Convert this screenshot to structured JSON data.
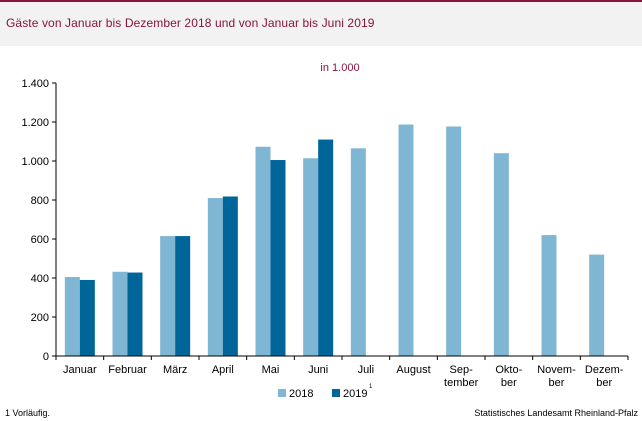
{
  "header": {
    "title": "Gäste von Januar bis Dezember 2018 und von Januar bis Juni 2019"
  },
  "colors": {
    "brand": "#8a1538",
    "series_2018": "#7fb6d3",
    "series_2019": "#006599",
    "header_bg": "#f2f2f2"
  },
  "footer": {
    "note": "1 Vorläufig.",
    "source": "Statistisches Landesamt Rheinland-Pfalz"
  },
  "chart_data": {
    "type": "bar",
    "unit_label": "in 1.000",
    "categories": [
      [
        "Januar"
      ],
      [
        "Februar"
      ],
      [
        "März"
      ],
      [
        "April"
      ],
      [
        "Mai"
      ],
      [
        "Juni"
      ],
      [
        "Juli"
      ],
      [
        "August"
      ],
      [
        "Sep-",
        "tember"
      ],
      [
        "Okto-",
        "ber"
      ],
      [
        "Novem-",
        "ber"
      ],
      [
        "Dezem-",
        "ber"
      ]
    ],
    "series": [
      {
        "name": "2018",
        "color": "#7fb6d3",
        "values": [
          405,
          432,
          615,
          810,
          1073,
          1014,
          1065,
          1187,
          1177,
          1040,
          620,
          520
        ]
      },
      {
        "name": "2019",
        "footnote_marker": "1",
        "color": "#006599",
        "values": [
          390,
          428,
          615,
          818,
          1005,
          1110,
          null,
          null,
          null,
          null,
          null,
          null
        ]
      }
    ],
    "ylim": [
      0,
      1400
    ],
    "yticks": [
      0,
      200,
      400,
      600,
      800,
      1000,
      1200,
      1400
    ],
    "ytick_labels": [
      "0",
      "200",
      "400",
      "600",
      "800",
      "1.000",
      "1.200",
      "1.400"
    ],
    "grid": false,
    "legend_position": "bottom-center"
  }
}
